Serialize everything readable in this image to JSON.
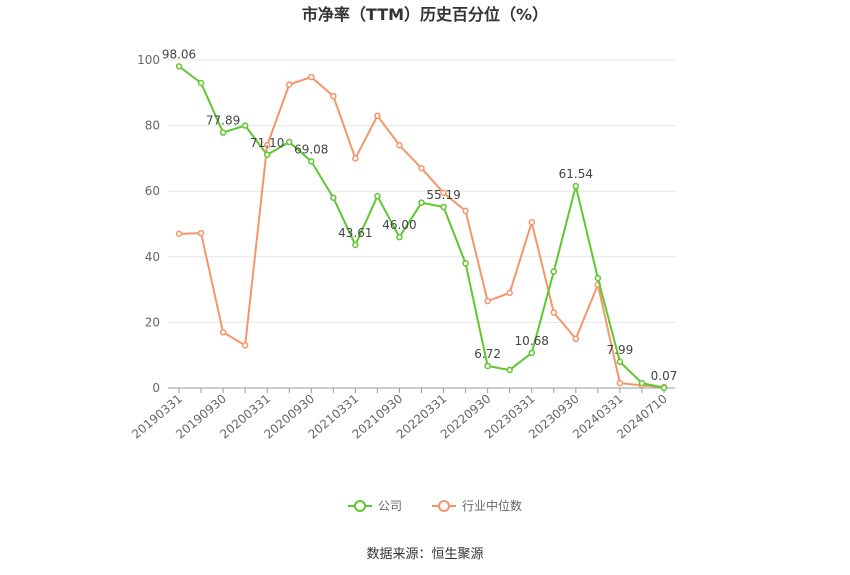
{
  "chart_data": {
    "type": "line",
    "title": "市净率（TTM）历史百分位（%）",
    "categories": [
      "20190331",
      null,
      "20190930",
      null,
      "20200331",
      null,
      "20200930",
      null,
      "20210331",
      null,
      "20210930",
      null,
      "20220331",
      null,
      "20220930",
      null,
      "20230331",
      null,
      "20230930",
      null,
      "20240331",
      null,
      "20240710"
    ],
    "series": [
      {
        "name": "公司",
        "color": "#5fc72f",
        "values": [
          98.06,
          93,
          77.89,
          80,
          71.1,
          75,
          69.08,
          58,
          43.61,
          58.5,
          46.0,
          56.5,
          55.19,
          38,
          6.72,
          5.5,
          10.68,
          35.5,
          61.54,
          33.5,
          7.99,
          1.5,
          0.07
        ],
        "value_labels": [
          "98.06",
          null,
          "77.89",
          null,
          "71.10",
          null,
          "69.08",
          null,
          "43.61",
          null,
          "46.00",
          null,
          "55.19",
          null,
          "6.72",
          null,
          "10.68",
          null,
          "61.54",
          null,
          "7.99",
          null,
          "0.07"
        ]
      },
      {
        "name": "行业中位数",
        "color": "#f5956b",
        "values": [
          47,
          47.2,
          17,
          13,
          74,
          92.5,
          94.8,
          89,
          70,
          83,
          74,
          67,
          59.5,
          54,
          26.5,
          29,
          50.5,
          23,
          15,
          31.5,
          1.5,
          0.8,
          0.3
        ]
      }
    ],
    "ylim": [
      0,
      100
    ],
    "yticks": [
      0,
      20,
      40,
      60,
      80,
      100
    ],
    "grid": true,
    "legend": "bottom",
    "source": "数据来源：恒生聚源"
  }
}
